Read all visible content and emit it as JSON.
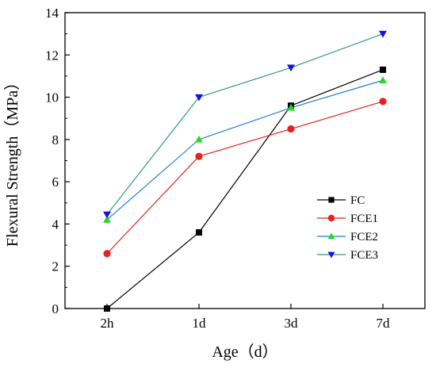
{
  "chart_data": {
    "type": "line",
    "title": "",
    "xlabel": "Age（d）",
    "ylabel": "Flexural Strength（MPa）",
    "categories": [
      "2h",
      "1d",
      "3d",
      "7d"
    ],
    "ylim": [
      0,
      14
    ],
    "yticks": [
      "0",
      "2",
      "4",
      "6",
      "8",
      "10",
      "12",
      "14"
    ],
    "grid": false,
    "legend_position": "center-right",
    "series": [
      {
        "name": "FC",
        "values": [
          0.0,
          3.6,
          9.6,
          11.3
        ],
        "color": "#000000",
        "marker": "square"
      },
      {
        "name": "FCE1",
        "values": [
          2.6,
          7.2,
          8.5,
          9.8
        ],
        "color": "#e8211c",
        "marker": "circle"
      },
      {
        "name": "FCE2",
        "values": [
          4.2,
          8.0,
          9.5,
          10.8
        ],
        "color": "#1f7fd0",
        "marker": "triangle-up"
      },
      {
        "name": "FCE3",
        "values": [
          4.45,
          10.0,
          11.4,
          13.0
        ],
        "color": "#2d9a7a",
        "marker": "triangle-down"
      }
    ]
  },
  "marker_colors": {
    "FC": "#000000",
    "FCE1": "#e8211c",
    "FCE2": "#2ad62a",
    "FCE3": "#1313e6"
  }
}
